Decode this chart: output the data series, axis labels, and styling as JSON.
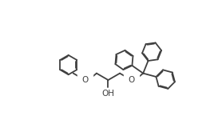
{
  "background_color": "#ffffff",
  "line_color": "#404040",
  "line_width": 1.3,
  "dbo": 0.038,
  "ring_r": 0.52,
  "figsize": [
    2.78,
    1.65
  ],
  "dpi": 100,
  "OH_label": "OH",
  "O1_label": "O",
  "O2_label": "O",
  "font_size": 7.5
}
